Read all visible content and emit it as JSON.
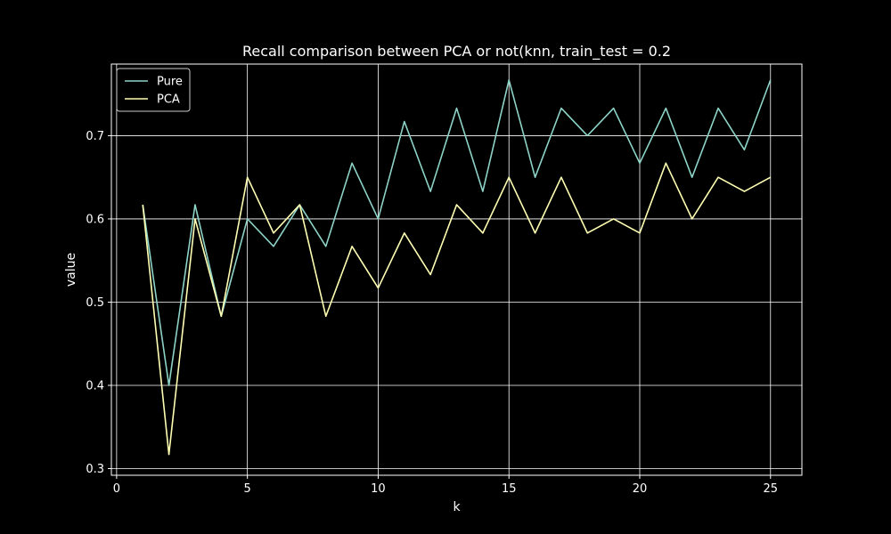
{
  "chart_data": {
    "type": "line",
    "title": "Recall comparison between PCA or not(knn, train_test = 0.2",
    "xlabel": "k",
    "ylabel": "value",
    "xlim": [
      -0.2,
      26.2
    ],
    "ylim": [
      0.292,
      0.786
    ],
    "xticks": [
      0,
      5,
      10,
      15,
      20,
      25
    ],
    "yticks": [
      0.3,
      0.4,
      0.5,
      0.6,
      0.7
    ],
    "grid": true,
    "legend_position": "upper left",
    "x": [
      1,
      2,
      3,
      4,
      5,
      6,
      7,
      8,
      9,
      10,
      11,
      12,
      13,
      14,
      15,
      16,
      17,
      18,
      19,
      20,
      21,
      22,
      23,
      24,
      25
    ],
    "series": [
      {
        "name": "Pure",
        "color": "#8dd3c7",
        "values": [
          0.617,
          0.4,
          0.617,
          0.483,
          0.6,
          0.567,
          0.617,
          0.567,
          0.667,
          0.6,
          0.717,
          0.633,
          0.733,
          0.633,
          0.767,
          0.65,
          0.733,
          0.7,
          0.733,
          0.667,
          0.733,
          0.65,
          0.733,
          0.683,
          0.767
        ]
      },
      {
        "name": "PCA",
        "color": "#ffffb3",
        "values": [
          0.617,
          0.317,
          0.6,
          0.483,
          0.65,
          0.583,
          0.617,
          0.483,
          0.567,
          0.517,
          0.583,
          0.533,
          0.617,
          0.583,
          0.65,
          0.583,
          0.65,
          0.583,
          0.6,
          0.583,
          0.667,
          0.6,
          0.65,
          0.633,
          0.65
        ]
      }
    ]
  }
}
